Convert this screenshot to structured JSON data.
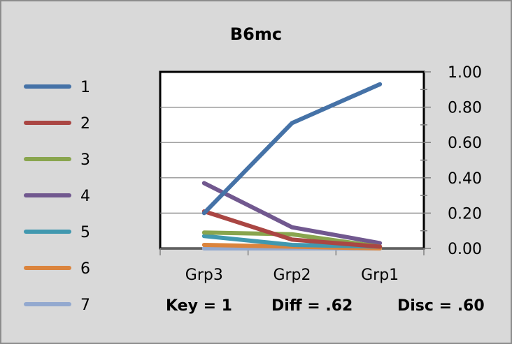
{
  "chart_data": {
    "type": "line",
    "title": "B6mc",
    "categories": [
      "Grp3",
      "Grp2",
      "Grp1"
    ],
    "ylim": [
      0,
      1
    ],
    "y_ticks": [
      "0.00",
      "0.20",
      "0.40",
      "0.60",
      "0.80",
      "1.00"
    ],
    "y_axis_side": "right",
    "grid": true,
    "legend_position": "left",
    "series": [
      {
        "name": "1",
        "color": "#4572a7",
        "values": [
          0.2,
          0.71,
          0.93
        ]
      },
      {
        "name": "2",
        "color": "#aa4643",
        "values": [
          0.21,
          0.05,
          0.01
        ]
      },
      {
        "name": "3",
        "color": "#89a54e",
        "values": [
          0.09,
          0.08,
          0.01
        ]
      },
      {
        "name": "4",
        "color": "#71588f",
        "values": [
          0.37,
          0.12,
          0.03
        ]
      },
      {
        "name": "5",
        "color": "#4198af",
        "values": [
          0.07,
          0.02,
          0.01
        ]
      },
      {
        "name": "6",
        "color": "#db843d",
        "values": [
          0.02,
          0.01,
          0.0
        ]
      },
      {
        "name": "7",
        "color": "#93a9cf",
        "values": [
          0.0,
          0.0,
          0.0
        ]
      }
    ],
    "series_colors_note_removed": true,
    "footer": {
      "key": "Key = 1",
      "diff": "Diff = .62",
      "disc": "Disc = .60"
    }
  }
}
